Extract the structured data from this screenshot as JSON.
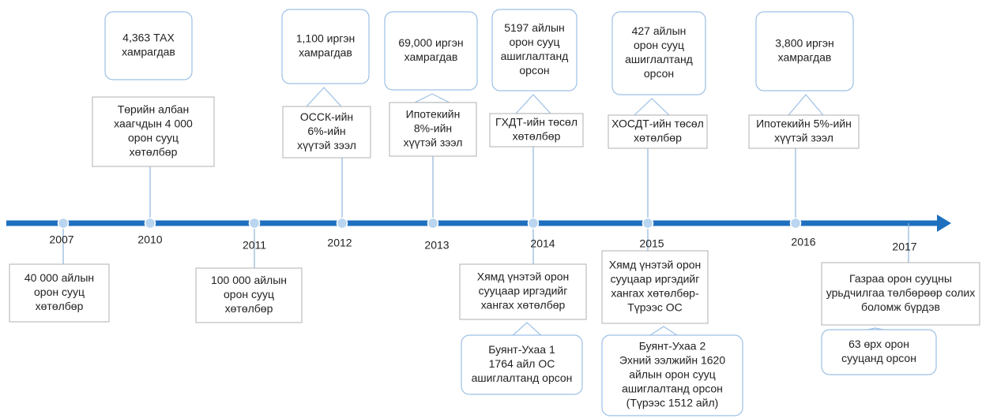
{
  "years": [
    "2007",
    "2010",
    "2011",
    "2012",
    "2013",
    "2014",
    "2015",
    "2016",
    "2017"
  ],
  "above": [
    {
      "box": [
        "Төрийн албан",
        "хаагчдын 4 000",
        "орон сууц",
        "хөтөлбөр"
      ],
      "callout": [
        "4,363 ТАХ",
        "хамрагдав"
      ]
    },
    {
      "box": [
        "ОССК-ийн",
        "6%-ийн",
        "хүүтэй зээл"
      ],
      "callout": [
        "1,100 иргэн",
        "хамрагдав"
      ]
    },
    {
      "box": [
        "Ипотекийн",
        "8%-ийн",
        "хүүтэй зээл"
      ],
      "callout": [
        "69,000 иргэн",
        "хамрагдав"
      ]
    },
    {
      "box": [
        "ГХДТ-ийн төсөл",
        "хөтөлбөр"
      ],
      "callout": [
        "5197 айлын",
        "орон сууц",
        "ашиглалтанд",
        "орсон"
      ]
    },
    {
      "box": [
        "ХОСДТ-ийн төсөл",
        "хөтөлбөр"
      ],
      "callout": [
        "427 айлын",
        "орон сууц",
        "ашиглалтанд",
        "орсон"
      ]
    },
    {
      "box": [
        "Ипотекийн 5%-ийн",
        "хүүтэй зээл"
      ],
      "callout": [
        "3,800 иргэн",
        "хамрагдав"
      ]
    }
  ],
  "below": [
    {
      "box": [
        "40 000 айлын",
        "орон сууц",
        "хөтөлбөр"
      ]
    },
    {
      "box": [
        "100 000 айлын",
        "орон сууц",
        "хөтөлбөр"
      ]
    },
    {
      "box": [
        "Хямд үнэтэй орон",
        "сууцаар иргэдийг",
        "хангах  хөтөлбөр"
      ],
      "callout": [
        "Буянт-Ухаа 1",
        "1764 айл ОС",
        "ашиглалтанд орсон"
      ]
    },
    {
      "box": [
        "Хямд үнэтэй орон",
        "сууцаар иргэдийг",
        "хангах хөтөлбөр-",
        "Түрээс ОС"
      ],
      "callout": [
        "Буянт-Ухаа 2",
        "Эхний ээлжийн 1620",
        "айлын орон сууц",
        "ашиглалтанд орсон",
        "(Түрээс 1512 айл)"
      ]
    },
    {
      "box": [
        "Газраа орон сууцны",
        "урьдчилгаа төлбөрөөр солих",
        "боломж бүрдэв"
      ],
      "callout": [
        "63 өрх орон",
        "сууцанд орсон"
      ]
    }
  ]
}
